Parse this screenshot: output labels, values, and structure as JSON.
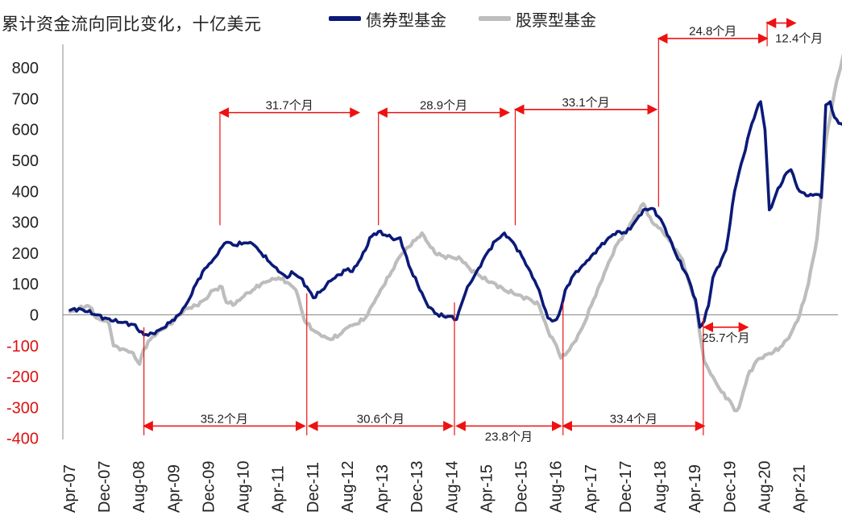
{
  "chart_data": {
    "type": "line",
    "title": "累计资金流向同比变化，十亿美元",
    "legend_position": "top",
    "grid": false,
    "ylim": [
      -400,
      850
    ],
    "yticks": [
      800,
      700,
      600,
      500,
      400,
      300,
      200,
      100,
      0,
      -100,
      -200,
      -300,
      -400
    ],
    "xticks": [
      "Apr-07",
      "Dec-07",
      "Aug-08",
      "Apr-09",
      "Dec-09",
      "Aug-10",
      "Apr-11",
      "Dec-11",
      "Aug-12",
      "Apr-13",
      "Dec-13",
      "Aug-14",
      "Apr-15",
      "Dec-15",
      "Aug-16",
      "Apr-17",
      "Dec-17",
      "Aug-18",
      "Apr-19",
      "Dec-19",
      "Aug-20",
      "Apr-21"
    ],
    "colors": {
      "bond": "#0b1a78",
      "equity": "#bdbdbd",
      "annotation": "#ee1111",
      "axis": "#888888",
      "negative_tick": "#dd1111"
    },
    "series": [
      {
        "name": "债券型基金",
        "key": "bond",
        "points": [
          [
            0,
            15
          ],
          [
            2,
            20
          ],
          [
            4,
            10
          ],
          [
            6,
            0
          ],
          [
            8,
            -10
          ],
          [
            10,
            -20
          ],
          [
            12,
            -25
          ],
          [
            14,
            -30
          ],
          [
            15,
            -32
          ],
          [
            16,
            -55
          ],
          [
            17,
            -65
          ],
          [
            19,
            -60
          ],
          [
            21,
            -45
          ],
          [
            23,
            -25
          ],
          [
            25,
            0
          ],
          [
            27,
            40
          ],
          [
            29,
            100
          ],
          [
            31,
            150
          ],
          [
            33,
            180
          ],
          [
            35,
            220
          ],
          [
            36,
            235
          ],
          [
            38,
            225
          ],
          [
            40,
            233
          ],
          [
            42,
            230
          ],
          [
            44,
            200
          ],
          [
            46,
            170
          ],
          [
            48,
            140
          ],
          [
            50,
            120
          ],
          [
            51,
            140
          ],
          [
            53,
            120
          ],
          [
            55,
            80
          ],
          [
            56,
            55
          ],
          [
            58,
            80
          ],
          [
            60,
            110
          ],
          [
            62,
            130
          ],
          [
            64,
            150
          ],
          [
            65,
            140
          ],
          [
            66,
            160
          ],
          [
            68,
            210
          ],
          [
            69,
            250
          ],
          [
            71,
            270
          ],
          [
            73,
            255
          ],
          [
            75,
            245
          ],
          [
            76,
            250
          ],
          [
            78,
            160
          ],
          [
            80,
            100
          ],
          [
            82,
            40
          ],
          [
            84,
            5
          ],
          [
            86,
            -5
          ],
          [
            88,
            -5
          ],
          [
            89,
            -15
          ],
          [
            90,
            30
          ],
          [
            91,
            70
          ],
          [
            92,
            100
          ],
          [
            94,
            150
          ],
          [
            96,
            200
          ],
          [
            98,
            240
          ],
          [
            100,
            265
          ],
          [
            102,
            235
          ],
          [
            104,
            190
          ],
          [
            106,
            140
          ],
          [
            108,
            80
          ],
          [
            109,
            30
          ],
          [
            110,
            -10
          ],
          [
            111,
            -20
          ],
          [
            112,
            -15
          ],
          [
            113,
            20
          ],
          [
            114,
            80
          ],
          [
            116,
            130
          ],
          [
            118,
            160
          ],
          [
            120,
            190
          ],
          [
            122,
            220
          ],
          [
            124,
            250
          ],
          [
            126,
            270
          ],
          [
            128,
            265
          ],
          [
            130,
            300
          ],
          [
            132,
            340
          ],
          [
            134,
            345
          ],
          [
            136,
            310
          ],
          [
            138,
            250
          ],
          [
            140,
            180
          ],
          [
            142,
            130
          ],
          [
            144,
            50
          ],
          [
            145,
            -40
          ],
          [
            146,
            -20
          ],
          [
            147,
            30
          ],
          [
            148,
            120
          ],
          [
            150,
            180
          ],
          [
            151,
            210
          ],
          [
            152,
            300
          ],
          [
            153,
            400
          ],
          [
            154,
            460
          ],
          [
            155,
            510
          ],
          [
            156,
            570
          ],
          [
            157,
            620
          ],
          [
            158,
            660
          ],
          [
            159,
            690
          ],
          [
            160,
            600
          ],
          [
            161,
            340
          ],
          [
            162,
            370
          ],
          [
            163,
            410
          ],
          [
            164,
            430
          ],
          [
            165,
            460
          ],
          [
            166,
            470
          ],
          [
            167,
            430
          ],
          [
            168,
            400
          ],
          [
            169,
            395
          ],
          [
            170,
            385
          ],
          [
            172,
            390
          ],
          [
            173,
            380
          ],
          [
            174,
            680
          ],
          [
            175,
            690
          ],
          [
            176,
            640
          ],
          [
            177,
            620
          ],
          [
            178,
            615
          ]
        ]
      },
      {
        "name": "股票型基金",
        "key": "equity",
        "points": [
          [
            0,
            10
          ],
          [
            2,
            20
          ],
          [
            4,
            30
          ],
          [
            5,
            20
          ],
          [
            6,
            -10
          ],
          [
            8,
            -20
          ],
          [
            9,
            -30
          ],
          [
            10,
            -100
          ],
          [
            12,
            -110
          ],
          [
            14,
            -120
          ],
          [
            15,
            -140
          ],
          [
            16,
            -160
          ],
          [
            17,
            -110
          ],
          [
            19,
            -70
          ],
          [
            21,
            -50
          ],
          [
            23,
            -30
          ],
          [
            25,
            0
          ],
          [
            27,
            20
          ],
          [
            29,
            30
          ],
          [
            31,
            50
          ],
          [
            33,
            80
          ],
          [
            35,
            90
          ],
          [
            36,
            40
          ],
          [
            38,
            35
          ],
          [
            40,
            60
          ],
          [
            42,
            80
          ],
          [
            44,
            100
          ],
          [
            46,
            110
          ],
          [
            48,
            120
          ],
          [
            50,
            105
          ],
          [
            52,
            80
          ],
          [
            54,
            -20
          ],
          [
            56,
            -50
          ],
          [
            58,
            -70
          ],
          [
            60,
            -80
          ],
          [
            62,
            -65
          ],
          [
            64,
            -40
          ],
          [
            66,
            -30
          ],
          [
            68,
            -10
          ],
          [
            70,
            40
          ],
          [
            72,
            90
          ],
          [
            74,
            140
          ],
          [
            76,
            190
          ],
          [
            78,
            220
          ],
          [
            80,
            250
          ],
          [
            81,
            265
          ],
          [
            82,
            240
          ],
          [
            84,
            200
          ],
          [
            86,
            190
          ],
          [
            88,
            185
          ],
          [
            90,
            180
          ],
          [
            92,
            150
          ],
          [
            94,
            130
          ],
          [
            96,
            110
          ],
          [
            98,
            100
          ],
          [
            100,
            80
          ],
          [
            102,
            70
          ],
          [
            104,
            60
          ],
          [
            106,
            50
          ],
          [
            108,
            30
          ],
          [
            110,
            -50
          ],
          [
            112,
            -100
          ],
          [
            113,
            -140
          ],
          [
            114,
            -130
          ],
          [
            116,
            -90
          ],
          [
            118,
            -40
          ],
          [
            120,
            30
          ],
          [
            122,
            100
          ],
          [
            124,
            170
          ],
          [
            126,
            230
          ],
          [
            128,
            270
          ],
          [
            130,
            320
          ],
          [
            132,
            360
          ],
          [
            134,
            300
          ],
          [
            136,
            280
          ],
          [
            138,
            240
          ],
          [
            140,
            200
          ],
          [
            141,
            180
          ],
          [
            142,
            130
          ],
          [
            144,
            40
          ],
          [
            145,
            -60
          ],
          [
            146,
            -150
          ],
          [
            148,
            -200
          ],
          [
            150,
            -250
          ],
          [
            152,
            -280
          ],
          [
            153,
            -310
          ],
          [
            154,
            -300
          ],
          [
            155,
            -250
          ],
          [
            156,
            -200
          ],
          [
            158,
            -150
          ],
          [
            160,
            -130
          ],
          [
            162,
            -120
          ],
          [
            164,
            -100
          ],
          [
            166,
            -60
          ],
          [
            168,
            0
          ],
          [
            170,
            100
          ],
          [
            172,
            250
          ],
          [
            173,
            400
          ],
          [
            174,
            560
          ],
          [
            175,
            640
          ],
          [
            176,
            720
          ],
          [
            177,
            780
          ],
          [
            178,
            840
          ]
        ]
      }
    ],
    "annotations": [
      {
        "label": "31.7个月",
        "from": 34.5,
        "to": 66.5,
        "y": 655,
        "position": "above",
        "vline": {
          "x": 34.5,
          "from": 655,
          "to": 290
        }
      },
      {
        "label": "28.9个月",
        "from": 71,
        "to": 101,
        "y": 655,
        "position": "above",
        "vline": {
          "x": 71,
          "from": 655,
          "to": 290
        }
      },
      {
        "label": "33.1个月",
        "from": 102.5,
        "to": 135,
        "y": 665,
        "position": "above",
        "vline": {
          "x": 102.5,
          "from": 665,
          "to": 290
        }
      },
      {
        "label": "24.8个月",
        "from": 135.5,
        "to": 160.5,
        "y": 895,
        "position": "above",
        "vline": {
          "x": 135.5,
          "from": 895,
          "to": 350
        }
      },
      {
        "label": "12.4个月",
        "from": 160.5,
        "to": 167,
        "y": 945,
        "position": "below-right",
        "vline": {
          "x": 160.5,
          "from": 950,
          "to": 870
        }
      },
      {
        "label": "35.2个月",
        "from": 17,
        "to": 54,
        "y": -360,
        "position": "above",
        "vline": {
          "x": 17,
          "from": -40,
          "to": -390
        }
      },
      {
        "label": "30.6个月",
        "from": 55,
        "to": 88,
        "y": -360,
        "position": "above",
        "vline": {
          "x": 54.5,
          "from": 70,
          "to": -390
        }
      },
      {
        "label": "23.8个月",
        "from": 89,
        "to": 113,
        "y": -360,
        "position": "below",
        "vline": {
          "x": 88.5,
          "from": 40,
          "to": -390
        }
      },
      {
        "label": "33.4个月",
        "from": 113.5,
        "to": 146,
        "y": -360,
        "position": "above",
        "vline": {
          "x": 113.5,
          "from": 40,
          "to": -390
        }
      },
      {
        "label": "25.7个月",
        "from": 146,
        "to": 156,
        "y": -40,
        "position": "below",
        "vline": {
          "x": 145.8,
          "from": -10,
          "to": -390
        }
      }
    ]
  }
}
